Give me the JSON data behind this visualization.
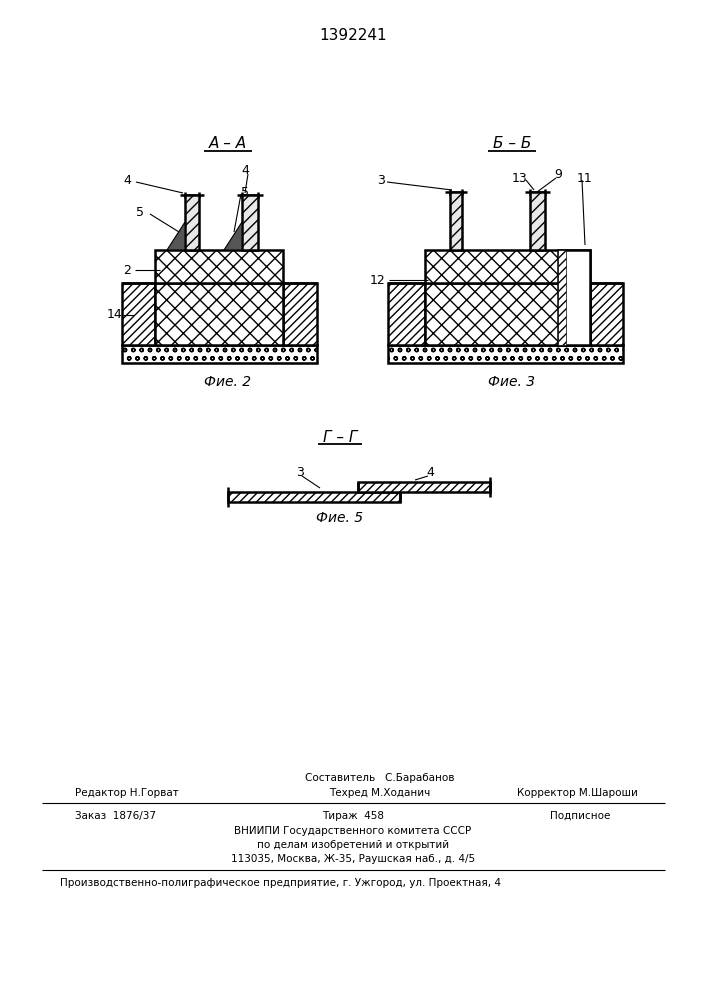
{
  "patent_number": "1392241",
  "fig2_title": "А – А",
  "fig3_title": "Б – Б",
  "fig5_title": "Г – Г",
  "fig2_caption": "Фие. 2",
  "fig3_caption": "Фие. 3",
  "fig5_caption": "Фие. 5",
  "bg_color": "#ffffff",
  "line_color": "#000000",
  "footer_sestavitel": "Составитель   С.Барабанов",
  "footer_redaktor": "Редактор Н.Горват",
  "footer_tehred": "Техред М.Ходанич",
  "footer_korrektor": "Корректор М.Шароши",
  "footer_zakaz": "Заказ  1876/37",
  "footer_tirazh": "Тираж  458",
  "footer_podpisnoe": "Подписное",
  "footer_vniip1": "ВНИИПИ Государственного комитета СССР",
  "footer_vniip2": "по делам изобретений и открытий",
  "footer_vniip3": "113035, Москва, Ж-35, Раушская наб., д. 4/5",
  "footer_prod": "Производственно-полиграфическое предприятие, г. Ужгород, ул. Проектная, 4"
}
